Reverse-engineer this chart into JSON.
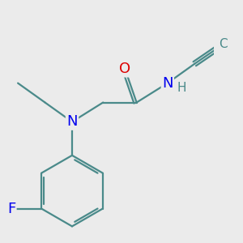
{
  "bg_color": "#ebebeb",
  "atom_colors": {
    "C": "#4a8a8a",
    "N": "#0000ee",
    "O": "#dd0000",
    "F": "#0000ee",
    "H": "#4a8a8a"
  },
  "bond_color": "#4a8a8a",
  "bond_lw": 1.6,
  "font_size_heavy": 13,
  "font_size_H": 11,
  "font_size_C": 11
}
